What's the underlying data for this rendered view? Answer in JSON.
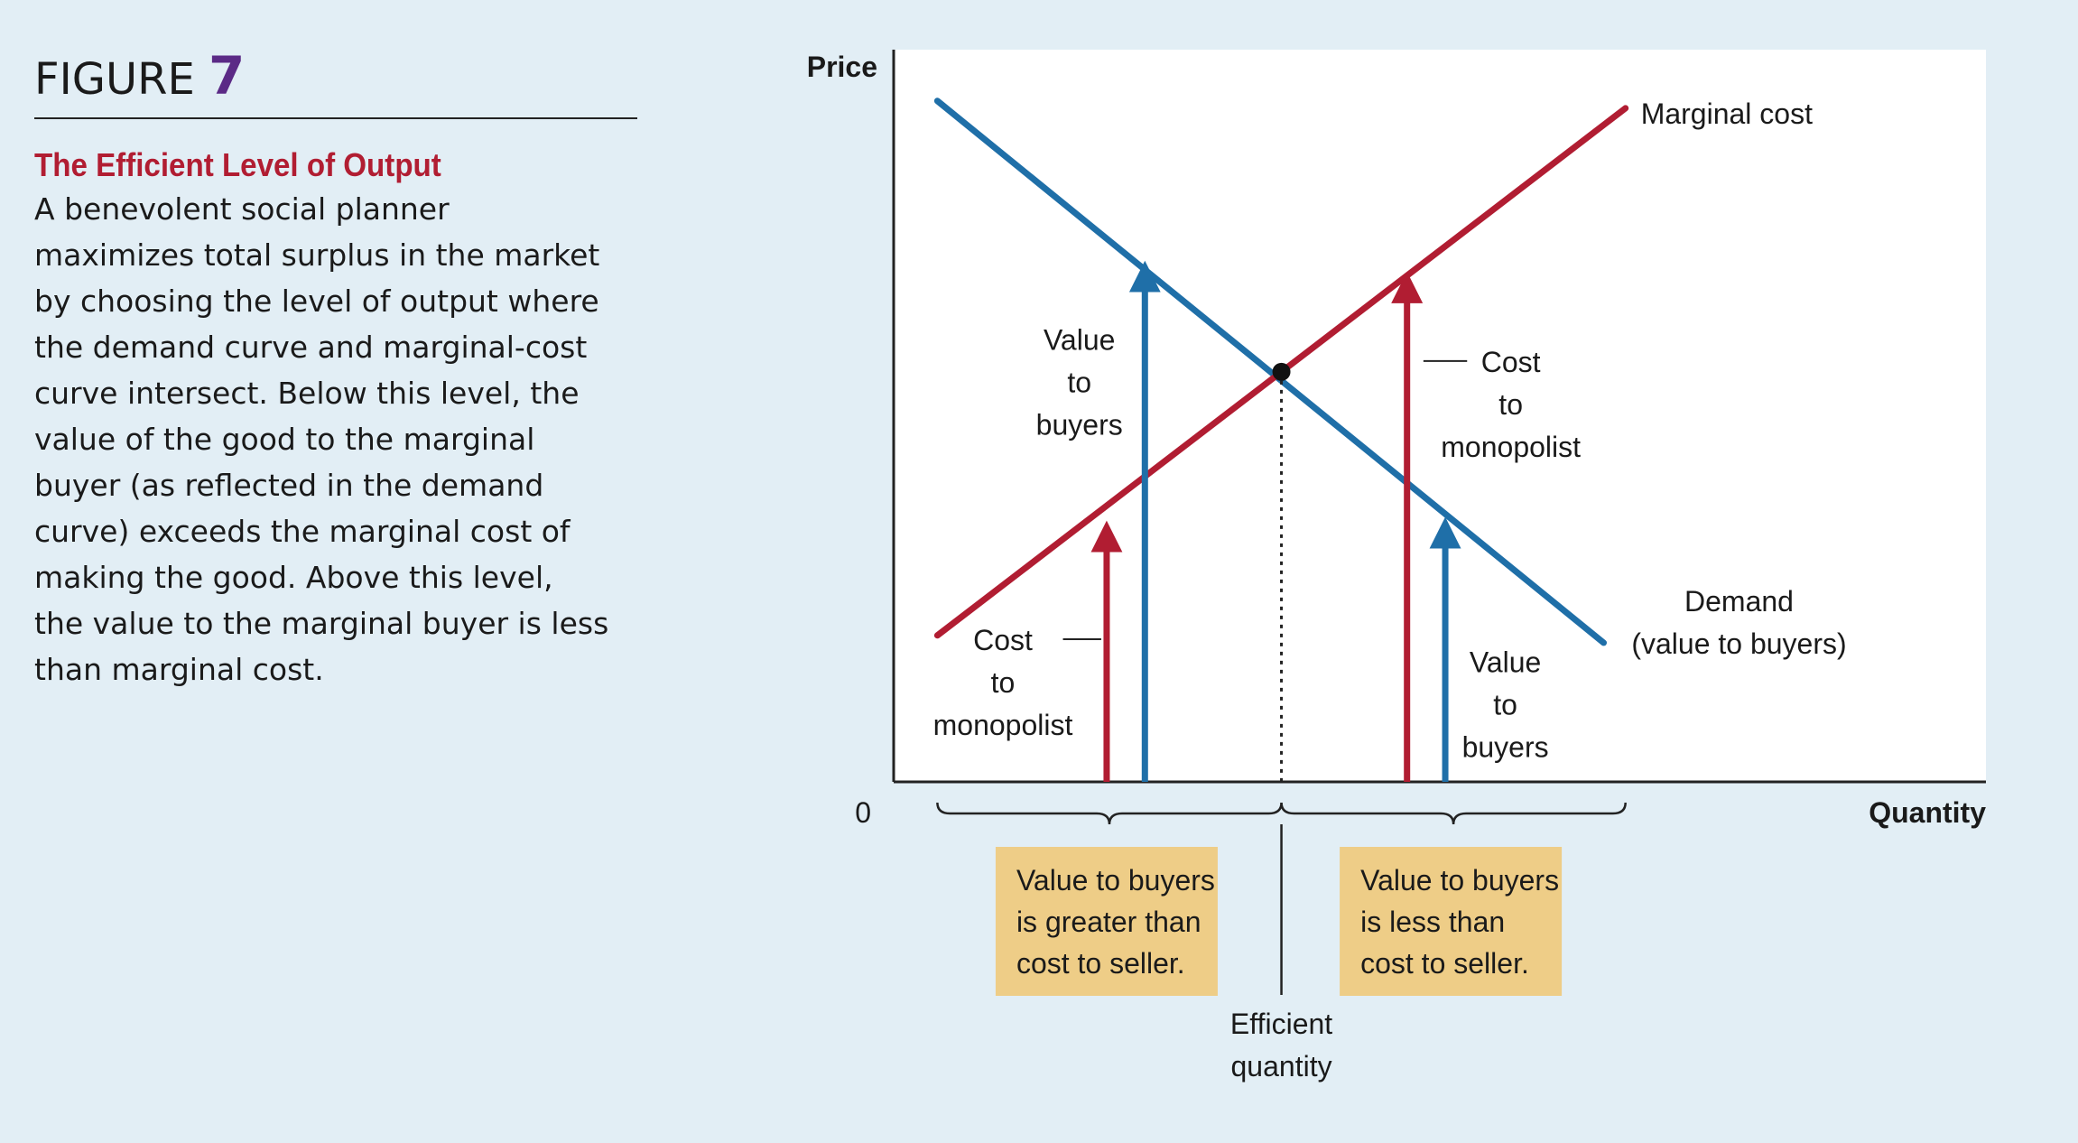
{
  "figure": {
    "label": "FIGURE",
    "number": "7",
    "title": "The Efficient Level of Output",
    "body": "A benevolent social planner\nmaximizes total surplus in the market\nby choosing the level of output where\nthe demand curve and marginal-cost\ncurve intersect. Below this level, the\nvalue of the good to the marginal\nbuyer (as reflected in the demand\ncurve) exceeds the marginal cost of\nmaking the good. Above this level,\nthe value to the marginal buyer is less\nthan marginal cost."
  },
  "colors": {
    "demand": "#1f6fa8",
    "marginal_cost": "#b11d32",
    "box": "#eecd87",
    "background": "#e2eef5",
    "plot": "#ffffff"
  },
  "chart_data": {
    "type": "line",
    "xlabel": "Quantity",
    "ylabel": "Price",
    "origin_label": "0",
    "xlim": [
      0,
      100
    ],
    "ylim": [
      0,
      100
    ],
    "grid": false,
    "series": [
      {
        "name": "Demand",
        "label_lines": [
          "Demand",
          "(value to buyers)"
        ],
        "color": "#1f6fa8",
        "x": [
          4,
          65
        ],
        "y": [
          93,
          19
        ]
      },
      {
        "name": "Marginal cost",
        "label_lines": [
          "Marginal cost"
        ],
        "color": "#b11d32",
        "x": [
          4,
          67
        ],
        "y": [
          20,
          92
        ]
      }
    ],
    "equilibrium": {
      "x": 35.5,
      "y": 56
    },
    "arrows": [
      {
        "series": "Marginal cost",
        "x": 19.5,
        "y_to": 35
      },
      {
        "series": "Demand",
        "x": 23,
        "y_to": 70.5
      },
      {
        "series": "Marginal cost",
        "x": 47,
        "y_to": 69
      },
      {
        "series": "Demand",
        "x": 50.5,
        "y_to": 35.5
      }
    ],
    "annotations": [
      {
        "lines": [
          "Value",
          "to",
          "buyers"
        ],
        "x": 17,
        "y": 59
      },
      {
        "lines": [
          "Cost",
          "to",
          "monopolist"
        ],
        "x": 10,
        "y": 18
      },
      {
        "lines": [
          "Cost",
          "to",
          "monopolist"
        ],
        "x": 56.5,
        "y": 56
      },
      {
        "lines": [
          "Value",
          "to",
          "buyers"
        ],
        "x": 56,
        "y": 15
      }
    ],
    "brackets": [
      {
        "x_from": 4,
        "x_to": 35.5
      },
      {
        "x_from": 35.5,
        "x_to": 67
      }
    ],
    "notes": [
      {
        "lines": [
          "Value to buyers",
          "is greater than",
          "cost to seller."
        ],
        "x_center": 19.5
      },
      {
        "lines": [
          "Value to buyers",
          "is less than",
          "cost to seller."
        ],
        "x_center": 51
      }
    ],
    "efficient_label": [
      "Efficient",
      "quantity"
    ]
  }
}
